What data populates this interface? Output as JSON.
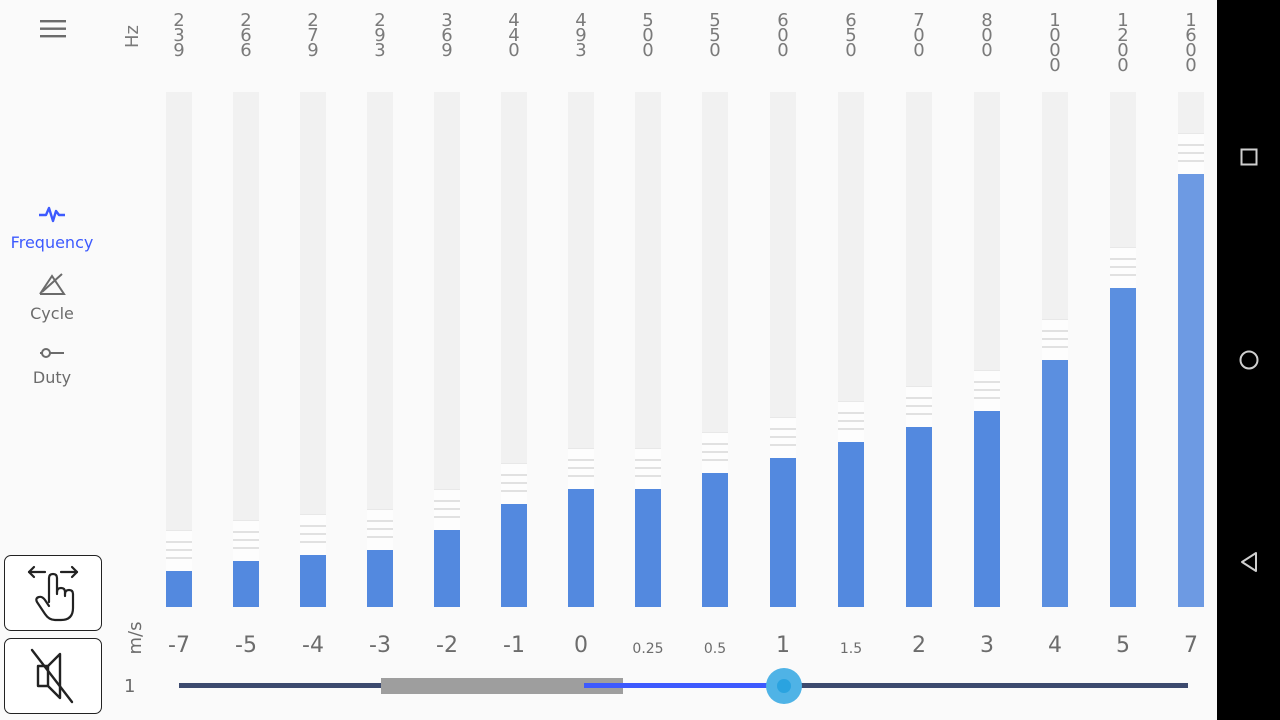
{
  "header": {
    "unit": "Hz"
  },
  "sidebar": {
    "items": [
      {
        "label": "Frequency",
        "active": true,
        "icon": "waveform-icon"
      },
      {
        "label": "Cycle",
        "active": false,
        "icon": "cycle-icon"
      },
      {
        "label": "Duty",
        "active": false,
        "icon": "duty-slider-icon"
      }
    ]
  },
  "columns": [
    {
      "freq": [
        "2",
        "3",
        "9"
      ],
      "speed": "-7",
      "level": 0.07
    },
    {
      "freq": [
        "2",
        "6",
        "6"
      ],
      "speed": "-5",
      "level": 0.09
    },
    {
      "freq": [
        "2",
        "7",
        "9"
      ],
      "speed": "-4",
      "level": 0.1
    },
    {
      "freq": [
        "2",
        "9",
        "3"
      ],
      "speed": "-3",
      "level": 0.11
    },
    {
      "freq": [
        "3",
        "6",
        "9"
      ],
      "speed": "-2",
      "level": 0.15
    },
    {
      "freq": [
        "4",
        "4",
        "0"
      ],
      "speed": "-1",
      "level": 0.2
    },
    {
      "freq": [
        "4",
        "9",
        "3"
      ],
      "speed": "0",
      "level": 0.23
    },
    {
      "freq": [
        "5",
        "0",
        "0"
      ],
      "speed": "0.25",
      "level": 0.23
    },
    {
      "freq": [
        "5",
        "5",
        "0"
      ],
      "speed": "0.5",
      "level": 0.26
    },
    {
      "freq": [
        "6",
        "0",
        "0"
      ],
      "speed": "1",
      "level": 0.29
    },
    {
      "freq": [
        "6",
        "5",
        "0"
      ],
      "speed": "1.5",
      "level": 0.32
    },
    {
      "freq": [
        "7",
        "0",
        "0"
      ],
      "speed": "2",
      "level": 0.35
    },
    {
      "freq": [
        "8",
        "0",
        "0"
      ],
      "speed": "3",
      "level": 0.38
    },
    {
      "freq": [
        "1",
        "0",
        "0",
        "0"
      ],
      "speed": "4",
      "level": 0.48
    },
    {
      "freq": [
        "1",
        "2",
        "0",
        "0"
      ],
      "speed": "5",
      "level": 0.62
    },
    {
      "freq": [
        "1",
        "6",
        "0",
        "0"
      ],
      "speed": "7",
      "level": 0.84
    }
  ],
  "speed_unit": "m/s",
  "slider": {
    "min_label": "1",
    "value": 0.6
  },
  "colors": {
    "accent": "#3d5afe",
    "bar": "#5389df",
    "thumb": "#4fb3e6"
  },
  "tools": {
    "gesture_icon": "swipe-hand-icon",
    "mute_icon": "speaker-muted-icon"
  },
  "navbar": {
    "recent_icon": "square-icon",
    "home_icon": "circle-icon",
    "back_icon": "triangle-back-icon"
  }
}
